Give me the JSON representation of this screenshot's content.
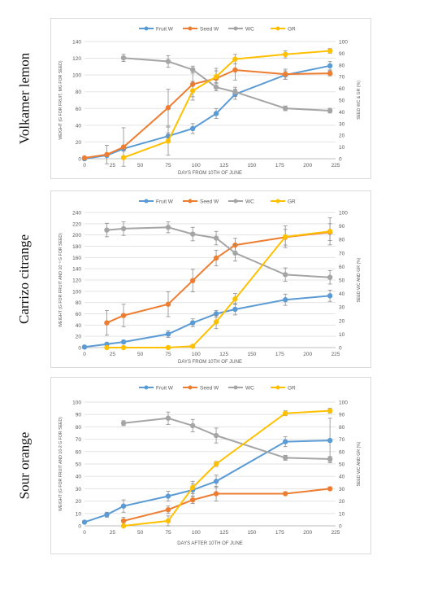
{
  "chart_data": [
    {
      "type": "line",
      "row_label": "Volkamer lemon",
      "legend": [
        "Fruit W",
        "Seed W",
        "WC",
        "GR"
      ],
      "xlabel": "DAYS FROM 10TH OF JUNE",
      "ylabel": "WEIGHT (G FOR FRUIT, MG FOR SEED)",
      "y2label": "SEED WC & GR (%)",
      "xlim": [
        0,
        225
      ],
      "xticks": [
        0,
        25,
        50,
        75,
        100,
        125,
        150,
        175,
        200,
        225
      ],
      "ylim": [
        0,
        140
      ],
      "yticks": [
        0,
        20,
        40,
        60,
        80,
        100,
        120,
        140
      ],
      "y2lim": [
        0,
        100
      ],
      "y2ticks": [
        0,
        10,
        20,
        30,
        40,
        50,
        60,
        70,
        80,
        90,
        100
      ],
      "series": [
        {
          "name": "Fruit W",
          "axis": "left",
          "color": "#5b9bd5",
          "x": [
            0,
            20,
            35,
            75,
            97,
            118,
            135,
            180,
            220
          ],
          "y": [
            0,
            4,
            12,
            27,
            36,
            54,
            77,
            100,
            111
          ],
          "err": [
            0,
            2,
            3,
            4,
            6,
            6,
            6,
            5,
            5
          ]
        },
        {
          "name": "Seed W",
          "axis": "left",
          "color": "#ed7d31",
          "x": [
            0,
            20,
            35,
            75,
            97,
            118,
            135,
            180,
            220
          ],
          "y": [
            1,
            5,
            14,
            61,
            89,
            96,
            106,
            101,
            102
          ],
          "err": [
            1,
            11,
            23,
            22,
            15,
            12,
            12,
            6,
            3
          ]
        },
        {
          "name": "WC",
          "axis": "right",
          "color": "#a5a5a5",
          "x": [
            35,
            75,
            97,
            118,
            135,
            180,
            220
          ],
          "y": [
            86,
            83,
            76,
            61,
            57,
            43,
            41
          ],
          "err": [
            3,
            5,
            3,
            3,
            4,
            2,
            2
          ]
        },
        {
          "name": "GR",
          "axis": "right",
          "color": "#ffc000",
          "x": [
            35,
            75,
            97,
            118,
            135,
            180,
            220
          ],
          "y": [
            1,
            15,
            58,
            70,
            85,
            89,
            92
          ],
          "err": [
            0,
            12,
            8,
            5,
            4,
            3,
            2
          ]
        }
      ]
    },
    {
      "type": "line",
      "row_label": "Carrizo citrange",
      "legend": [
        "Fruit W",
        "Seed W",
        "WC",
        "GR"
      ],
      "xlabel": "DAYS FROM 10TH OF JUNE",
      "ylabel": "WEIGHT (G FOR FRUIT AND 10⁻¹ G FOR SEED)",
      "y2label": "SEED WC AND GR (%)",
      "xlim": [
        0,
        225
      ],
      "xticks": [
        0,
        25,
        50,
        75,
        100,
        125,
        150,
        175,
        200,
        225
      ],
      "ylim": [
        0,
        240
      ],
      "yticks": [
        0,
        20,
        40,
        60,
        80,
        100,
        120,
        140,
        160,
        180,
        200,
        220,
        240
      ],
      "y2lim": [
        0,
        100
      ],
      "y2ticks": [
        0,
        10,
        20,
        30,
        40,
        50,
        60,
        70,
        80,
        90,
        100
      ],
      "series": [
        {
          "name": "Fruit W",
          "axis": "left",
          "color": "#5b9bd5",
          "x": [
            0,
            20,
            35,
            75,
            97,
            118,
            135,
            180,
            220
          ],
          "y": [
            1,
            6,
            10,
            24,
            44,
            60,
            68,
            85,
            92
          ],
          "err": [
            0,
            2,
            3,
            6,
            7,
            6,
            10,
            10,
            10
          ]
        },
        {
          "name": "Seed W",
          "axis": "left",
          "color": "#ed7d31",
          "x": [
            20,
            35,
            75,
            97,
            118,
            135,
            180,
            220
          ],
          "y": [
            44,
            57,
            77,
            119,
            159,
            182,
            196,
            205
          ],
          "err": [
            22,
            20,
            22,
            20,
            14,
            12,
            14,
            15
          ]
        },
        {
          "name": "WC",
          "axis": "right",
          "color": "#a5a5a5",
          "x": [
            20,
            35,
            75,
            97,
            118,
            135,
            180,
            220
          ],
          "y": [
            87,
            88,
            89,
            84,
            81,
            70,
            54,
            52
          ],
          "err": [
            5,
            5,
            4,
            5,
            5,
            6,
            5,
            5
          ]
        },
        {
          "name": "GR",
          "axis": "right",
          "color": "#ffc000",
          "x": [
            20,
            35,
            75,
            97,
            118,
            135,
            180,
            220
          ],
          "y": [
            0,
            0,
            0,
            1,
            19,
            36,
            82,
            86
          ],
          "err": [
            0,
            0,
            0,
            0,
            5,
            4,
            8,
            10
          ]
        }
      ]
    },
    {
      "type": "line",
      "row_label": "Sour orange",
      "legend": [
        "Fruit W",
        "Seed W",
        "WC",
        "GR"
      ],
      "xlabel": "DAYS AFTER 10TH OF JUNE",
      "ylabel": "WEIGHT (G FOR FRUIT AND 10-2 G FOR SEED)",
      "y2label": "SEED WC AND GR (%)",
      "xlim": [
        0,
        225
      ],
      "xticks": [
        0,
        25,
        50,
        75,
        100,
        125,
        150,
        175,
        200,
        225
      ],
      "ylim": [
        0,
        100
      ],
      "yticks": [
        0,
        10,
        20,
        30,
        40,
        50,
        60,
        70,
        80,
        90,
        100
      ],
      "y2lim": [
        0,
        100
      ],
      "y2ticks": [
        0,
        10,
        20,
        30,
        40,
        50,
        60,
        70,
        80,
        90,
        100
      ],
      "series": [
        {
          "name": "Fruit W",
          "axis": "left",
          "color": "#5b9bd5",
          "x": [
            0,
            20,
            35,
            75,
            97,
            118,
            180,
            220
          ],
          "y": [
            3,
            9,
            16,
            24,
            29,
            36,
            68,
            69
          ],
          "err": [
            0,
            2,
            5,
            4,
            5,
            5,
            4,
            18
          ]
        },
        {
          "name": "Seed W",
          "axis": "left",
          "color": "#ed7d31",
          "x": [
            35,
            75,
            97,
            118,
            180,
            220
          ],
          "y": [
            4,
            13,
            21,
            26,
            26,
            30
          ],
          "err": [
            3,
            3,
            3,
            6,
            1,
            1
          ]
        },
        {
          "name": "WC",
          "axis": "right",
          "color": "#a5a5a5",
          "x": [
            35,
            75,
            97,
            118,
            180,
            220
          ],
          "y": [
            83,
            87,
            81,
            73,
            55,
            54
          ],
          "err": [
            2,
            5,
            5,
            6,
            2,
            2
          ]
        },
        {
          "name": "GR",
          "axis": "right",
          "color": "#ffc000",
          "x": [
            35,
            75,
            97,
            118,
            180,
            220
          ],
          "y": [
            0,
            4,
            31,
            50,
            91,
            93
          ],
          "err": [
            0,
            4,
            5,
            2,
            2,
            2
          ]
        }
      ]
    }
  ]
}
